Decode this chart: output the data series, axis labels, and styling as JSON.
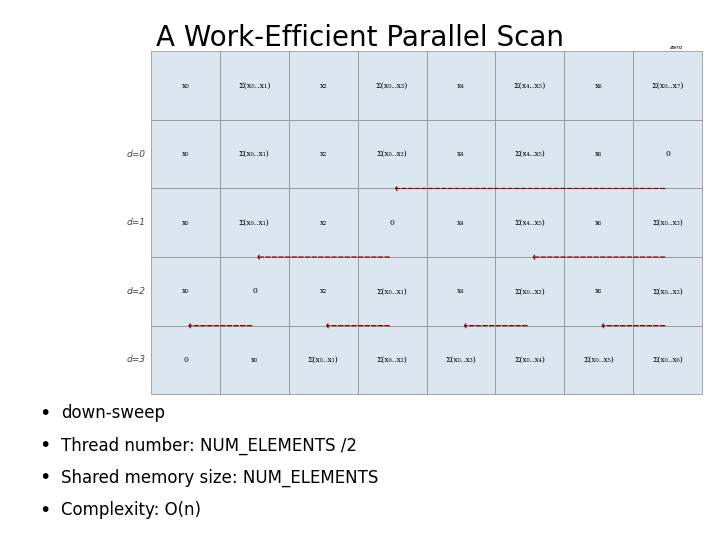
{
  "title": "A Work-Efficient Parallel Scan",
  "title_fontsize": 20,
  "background_color": "#ffffff",
  "bullet_points": [
    "down-sweep",
    "Thread number: NUM_ELEMENTS /2",
    "Shared memory size: NUM_ELEMENTS",
    "Complexity: O(n)"
  ],
  "bullet_fontsize": 12,
  "diagram": {
    "num_cols": 8,
    "col_labels_top": [
      "x₀",
      "Σ(x₀..x₁)",
      "x₂",
      "Σ(x₀..x₃)",
      "x₄",
      "Σ(x₄..x₅)",
      "x₆",
      "Σ(x₀..x₇)"
    ],
    "rows_data": [
      [
        "x₀",
        "Σ(x₀..x₁)",
        "x₂",
        "Σ(x₀..x₃)",
        "x₄",
        "Σ(x₄..x₅)",
        "x₆",
        "0"
      ],
      [
        "x₀",
        "Σ(x₀..x₁)",
        "x₂",
        "0",
        "x₄",
        "Σ(x₄..x₅)",
        "x₆",
        "Σ(x₀..x₃)"
      ],
      [
        "x₀",
        "0",
        "x₂",
        "Σ(x₀..x₁)",
        "x₄",
        "Σ(x₀..x₂)",
        "x₆",
        "Σ(x₀..x₃)"
      ],
      [
        "0",
        "x₀",
        "Σ(x₀..x₁)",
        "Σ(x₀..x₂)",
        "Σ(x₀..x₃)",
        "Σ(x₀..x₄)",
        "Σ(x₀..x₅)",
        "Σ(x₀..x₆)"
      ]
    ],
    "row_label_names": [
      "d=0",
      "d=1",
      "d=2",
      "d=3"
    ],
    "cell_bg": "#dce6f1",
    "cell_border": "#888888",
    "row_label_color": "#444444",
    "blue_arrow_color": "#3060a0",
    "red_arrow_color": "#8b0000"
  }
}
